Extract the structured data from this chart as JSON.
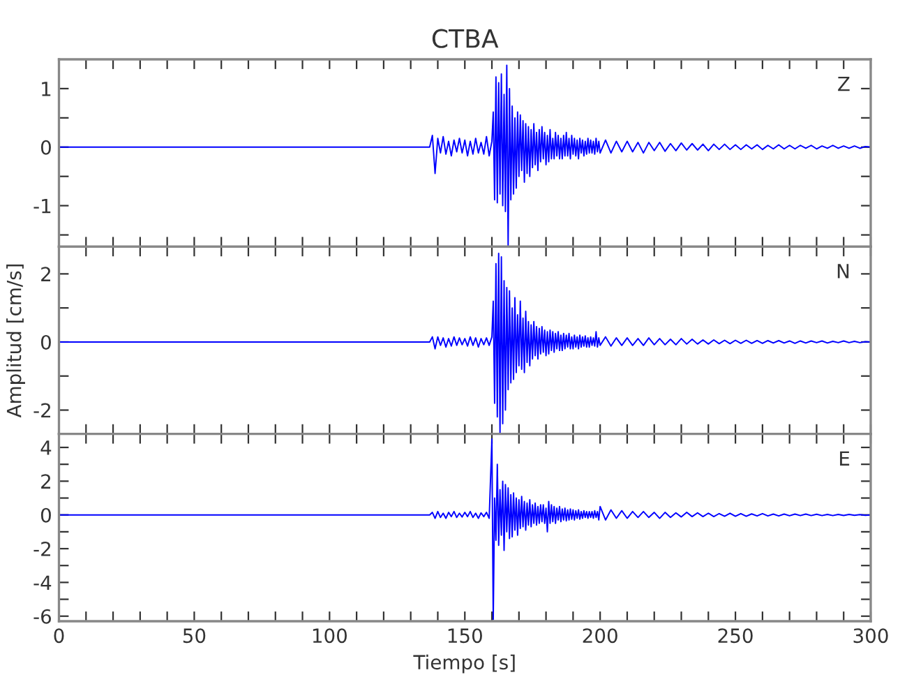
{
  "chart_data": [
    {
      "type": "line",
      "title": "CTBA",
      "annotations": [
        "Z"
      ],
      "tick_labels": "y",
      "grid": false,
      "legend": false,
      "marker": "none",
      "line_style": "solid",
      "xlim": [
        0,
        300
      ],
      "xticks": [
        {
          "value": 0,
          "label": null
        },
        {
          "value": 10,
          "label": null
        },
        {
          "value": 20,
          "label": null
        },
        {
          "value": 30,
          "label": null
        },
        {
          "value": 40,
          "label": null
        },
        {
          "value": 50,
          "label": null
        },
        {
          "value": 60,
          "label": null
        },
        {
          "value": 70,
          "label": null
        },
        {
          "value": 80,
          "label": null
        },
        {
          "value": 90,
          "label": null
        },
        {
          "value": 100,
          "label": null
        },
        {
          "value": 110,
          "label": null
        },
        {
          "value": 120,
          "label": null
        },
        {
          "value": 130,
          "label": null
        },
        {
          "value": 140,
          "label": null
        },
        {
          "value": 150,
          "label": null
        },
        {
          "value": 160,
          "label": null
        },
        {
          "value": 170,
          "label": null
        },
        {
          "value": 180,
          "label": null
        },
        {
          "value": 190,
          "label": null
        },
        {
          "value": 200,
          "label": null
        },
        {
          "value": 210,
          "label": null
        },
        {
          "value": 220,
          "label": null
        },
        {
          "value": 230,
          "label": null
        },
        {
          "value": 240,
          "label": null
        },
        {
          "value": 250,
          "label": null
        },
        {
          "value": 260,
          "label": null
        },
        {
          "value": 270,
          "label": null
        },
        {
          "value": 280,
          "label": null
        },
        {
          "value": 290,
          "label": null
        },
        {
          "value": 300,
          "label": null
        }
      ],
      "ylim": [
        -1.7,
        1.5
      ],
      "yticks": [
        {
          "value": -1.5,
          "label": null
        },
        -1,
        {
          "value": -0.5,
          "label": null
        },
        0,
        {
          "value": 0.5,
          "label": null
        },
        1
      ],
      "x": [
        0,
        137,
        138,
        139,
        140,
        141,
        142,
        143,
        144,
        145,
        146,
        147,
        148,
        149,
        150,
        151,
        152,
        153,
        154,
        155,
        156,
        157,
        158,
        159,
        160,
        160.5,
        161,
        161.5,
        162,
        162.5,
        163,
        163.5,
        164,
        164.5,
        165,
        165.5,
        166,
        166.5,
        167,
        167.5,
        168,
        168.5,
        169,
        169.5,
        170,
        170.5,
        171,
        171.5,
        172,
        172.5,
        173,
        173.5,
        174,
        174.5,
        175,
        175.5,
        176,
        176.5,
        177,
        177.5,
        178,
        178.5,
        179,
        179.5,
        180,
        180.5,
        181,
        181.5,
        182,
        182.5,
        183,
        183.5,
        184,
        184.5,
        185,
        185.5,
        186,
        186.5,
        187,
        187.5,
        188,
        188.5,
        189,
        189.5,
        190,
        190.5,
        191,
        191.5,
        192,
        192.5,
        193,
        193.5,
        194,
        194.5,
        195,
        195.5,
        196,
        196.5,
        197,
        197.5,
        198,
        198.5,
        199,
        199.5,
        200,
        202,
        204,
        206,
        208,
        210,
        212,
        214,
        216,
        218,
        220,
        222,
        224,
        226,
        228,
        230,
        232,
        234,
        236,
        238,
        240,
        242,
        244,
        246,
        248,
        250,
        252,
        254,
        256,
        258,
        260,
        262,
        264,
        266,
        268,
        270,
        272,
        274,
        276,
        278,
        280,
        282,
        284,
        286,
        288,
        290,
        292,
        294,
        296,
        298,
        300
      ],
      "series": [
        {
          "color": "#0000ff",
          "values": [
            0,
            0,
            0.2,
            -0.45,
            0.15,
            -0.1,
            0.18,
            -0.12,
            0.1,
            -0.15,
            0.12,
            -0.08,
            0.15,
            -0.1,
            0.12,
            -0.15,
            0.1,
            -0.12,
            0.15,
            -0.1,
            0.08,
            -0.12,
            0.18,
            -0.15,
            0.1,
            0.6,
            -0.9,
            1.2,
            -0.95,
            1.1,
            -0.8,
            1.25,
            -1.0,
            0.9,
            -1.1,
            1.4,
            -1.7,
            1.0,
            -0.9,
            0.7,
            -0.8,
            0.5,
            -0.7,
            0.6,
            -0.5,
            0.55,
            -0.4,
            0.45,
            -0.6,
            0.4,
            -0.45,
            0.35,
            -0.5,
            0.3,
            -0.35,
            0.4,
            -0.3,
            0.25,
            -0.4,
            0.3,
            -0.25,
            0.35,
            -0.2,
            0.25,
            -0.3,
            0.2,
            -0.25,
            0.3,
            -0.2,
            0.15,
            -0.2,
            0.25,
            -0.15,
            0.2,
            -0.2,
            0.15,
            -0.2,
            0.2,
            -0.15,
            0.25,
            -0.15,
            0.15,
            -0.2,
            0.2,
            -0.12,
            0.15,
            -0.15,
            0.12,
            -0.2,
            0.15,
            -0.1,
            0.12,
            -0.15,
            0.1,
            -0.12,
            0.15,
            -0.1,
            0.12,
            -0.1,
            0.1,
            -0.12,
            0.15,
            -0.08,
            0.1,
            -0.1,
            0.12,
            -0.1,
            0.1,
            -0.08,
            0.1,
            -0.08,
            0.08,
            -0.1,
            0.08,
            -0.06,
            0.08,
            -0.07,
            0.06,
            -0.06,
            0.07,
            -0.05,
            0.06,
            -0.05,
            0.05,
            -0.06,
            0.05,
            -0.04,
            0.05,
            -0.04,
            0.04,
            -0.04,
            0.04,
            -0.03,
            0.04,
            -0.04,
            0.03,
            -0.03,
            0.04,
            -0.03,
            0.03,
            -0.03,
            0.03,
            -0.02,
            0.03,
            -0.03,
            0.02,
            -0.02,
            0.03,
            -0.02,
            0.02,
            -0.02,
            0.02,
            -0.02,
            0.01,
            0
          ]
        }
      ]
    },
    {
      "type": "line",
      "ylabel": "Amplitud [cm/s]",
      "annotations": [
        "N"
      ],
      "tick_labels": "y",
      "grid": false,
      "legend": false,
      "marker": "none",
      "line_style": "solid",
      "xlim": [
        0,
        300
      ],
      "xticks": [
        {
          "value": 0,
          "label": null
        },
        {
          "value": 10,
          "label": null
        },
        {
          "value": 20,
          "label": null
        },
        {
          "value": 30,
          "label": null
        },
        {
          "value": 40,
          "label": null
        },
        {
          "value": 50,
          "label": null
        },
        {
          "value": 60,
          "label": null
        },
        {
          "value": 70,
          "label": null
        },
        {
          "value": 80,
          "label": null
        },
        {
          "value": 90,
          "label": null
        },
        {
          "value": 100,
          "label": null
        },
        {
          "value": 110,
          "label": null
        },
        {
          "value": 120,
          "label": null
        },
        {
          "value": 130,
          "label": null
        },
        {
          "value": 140,
          "label": null
        },
        {
          "value": 150,
          "label": null
        },
        {
          "value": 160,
          "label": null
        },
        {
          "value": 170,
          "label": null
        },
        {
          "value": 180,
          "label": null
        },
        {
          "value": 190,
          "label": null
        },
        {
          "value": 200,
          "label": null
        },
        {
          "value": 210,
          "label": null
        },
        {
          "value": 220,
          "label": null
        },
        {
          "value": 230,
          "label": null
        },
        {
          "value": 240,
          "label": null
        },
        {
          "value": 250,
          "label": null
        },
        {
          "value": 260,
          "label": null
        },
        {
          "value": 270,
          "label": null
        },
        {
          "value": 280,
          "label": null
        },
        {
          "value": 290,
          "label": null
        },
        {
          "value": 300,
          "label": null
        }
      ],
      "ylim": [
        -2.7,
        2.8
      ],
      "yticks": [
        -2,
        {
          "value": -1,
          "label": null
        },
        0,
        {
          "value": 1,
          "label": null
        },
        2
      ],
      "x": [
        0,
        137,
        138,
        139,
        140,
        141,
        142,
        143,
        144,
        145,
        146,
        147,
        148,
        149,
        150,
        151,
        152,
        153,
        154,
        155,
        156,
        157,
        158,
        159,
        160,
        160.5,
        161,
        161.5,
        162,
        162.5,
        163,
        163.5,
        164,
        164.5,
        165,
        165.5,
        166,
        166.5,
        167,
        167.5,
        168,
        168.5,
        169,
        169.5,
        170,
        170.5,
        171,
        171.5,
        172,
        172.5,
        173,
        173.5,
        174,
        174.5,
        175,
        175.5,
        176,
        176.5,
        177,
        177.5,
        178,
        178.5,
        179,
        179.5,
        180,
        180.5,
        181,
        181.5,
        182,
        182.5,
        183,
        183.5,
        184,
        184.5,
        185,
        185.5,
        186,
        186.5,
        187,
        187.5,
        188,
        188.5,
        189,
        189.5,
        190,
        190.5,
        191,
        191.5,
        192,
        192.5,
        193,
        193.5,
        194,
        194.5,
        195,
        195.5,
        196,
        196.5,
        197,
        197.5,
        198,
        198.5,
        199,
        199.5,
        200,
        202,
        204,
        206,
        208,
        210,
        212,
        214,
        216,
        218,
        220,
        222,
        224,
        226,
        228,
        230,
        232,
        234,
        236,
        238,
        240,
        242,
        244,
        246,
        248,
        250,
        252,
        254,
        256,
        258,
        260,
        262,
        264,
        266,
        268,
        270,
        272,
        274,
        276,
        278,
        280,
        282,
        284,
        286,
        288,
        290,
        292,
        294,
        296,
        298,
        300
      ],
      "series": [
        {
          "color": "#0000ff",
          "values": [
            0,
            0,
            0.15,
            -0.2,
            0.15,
            -0.1,
            0.12,
            -0.15,
            0.1,
            -0.12,
            0.15,
            -0.1,
            0.12,
            -0.08,
            0.1,
            -0.12,
            0.15,
            -0.1,
            0.12,
            -0.15,
            0.1,
            -0.08,
            0.12,
            -0.1,
            0.15,
            1.2,
            -1.8,
            2.3,
            -2.2,
            2.6,
            -2.7,
            2.5,
            -2.4,
            1.8,
            -2.0,
            1.6,
            -1.4,
            1.5,
            -1.2,
            1.0,
            -1.1,
            1.3,
            -0.9,
            0.8,
            -0.7,
            1.2,
            -0.8,
            0.7,
            -0.9,
            0.9,
            -0.6,
            0.6,
            -0.7,
            0.5,
            -0.5,
            0.6,
            -0.4,
            0.45,
            -0.5,
            0.4,
            -0.35,
            0.45,
            -0.3,
            0.35,
            -0.4,
            0.3,
            -0.35,
            0.35,
            -0.25,
            0.3,
            -0.3,
            0.25,
            -0.2,
            0.3,
            -0.25,
            0.2,
            -0.25,
            0.25,
            -0.2,
            0.2,
            -0.15,
            0.25,
            -0.2,
            0.15,
            -0.2,
            0.2,
            -0.15,
            0.15,
            -0.2,
            0.2,
            -0.15,
            0.15,
            -0.12,
            0.18,
            -0.15,
            0.12,
            -0.15,
            0.15,
            -0.1,
            0.12,
            -0.12,
            0.3,
            -0.15,
            0.12,
            -0.1,
            0.15,
            -0.12,
            0.12,
            -0.1,
            0.12,
            -0.1,
            0.1,
            -0.1,
            0.12,
            -0.08,
            0.1,
            -0.08,
            0.08,
            -0.08,
            0.1,
            -0.06,
            0.08,
            -0.06,
            0.06,
            -0.06,
            0.06,
            -0.05,
            0.05,
            -0.05,
            0.05,
            -0.04,
            0.05,
            -0.04,
            0.04,
            -0.04,
            0.04,
            -0.03,
            0.04,
            -0.03,
            0.03,
            -0.04,
            0.03,
            -0.03,
            0.03,
            -0.02,
            0.03,
            -0.03,
            0.02,
            -0.02,
            0.03,
            -0.02,
            0.02,
            -0.02,
            0.01,
            0
          ]
        }
      ]
    },
    {
      "type": "line",
      "xlabel": "Tiempo [s]",
      "annotations": [
        "E"
      ],
      "grid": false,
      "legend": false,
      "marker": "none",
      "line_style": "solid",
      "xlim": [
        0,
        300
      ],
      "xticks": [
        0,
        {
          "value": 10,
          "label": null
        },
        {
          "value": 20,
          "label": null
        },
        {
          "value": 30,
          "label": null
        },
        {
          "value": 40,
          "label": null
        },
        50,
        {
          "value": 60,
          "label": null
        },
        {
          "value": 70,
          "label": null
        },
        {
          "value": 80,
          "label": null
        },
        {
          "value": 90,
          "label": null
        },
        100,
        {
          "value": 110,
          "label": null
        },
        {
          "value": 120,
          "label": null
        },
        {
          "value": 130,
          "label": null
        },
        {
          "value": 140,
          "label": null
        },
        150,
        {
          "value": 160,
          "label": null
        },
        {
          "value": 170,
          "label": null
        },
        {
          "value": 180,
          "label": null
        },
        {
          "value": 190,
          "label": null
        },
        200,
        {
          "value": 210,
          "label": null
        },
        {
          "value": 220,
          "label": null
        },
        {
          "value": 230,
          "label": null
        },
        {
          "value": 240,
          "label": null
        },
        250,
        {
          "value": 260,
          "label": null
        },
        {
          "value": 270,
          "label": null
        },
        {
          "value": 280,
          "label": null
        },
        {
          "value": 290,
          "label": null
        },
        300
      ],
      "ylim": [
        -6.3,
        4.8
      ],
      "yticks": [
        -6,
        {
          "value": -5,
          "label": null
        },
        -4,
        {
          "value": -3,
          "label": null
        },
        -2,
        {
          "value": -1,
          "label": null
        },
        0,
        {
          "value": 1,
          "label": null
        },
        2,
        {
          "value": 3,
          "label": null
        },
        4
      ],
      "x": [
        0,
        137,
        138,
        139,
        140,
        141,
        142,
        143,
        144,
        145,
        146,
        147,
        148,
        149,
        150,
        151,
        152,
        153,
        154,
        155,
        156,
        157,
        158,
        159,
        160,
        160.5,
        161,
        161.5,
        162,
        162.5,
        163,
        163.5,
        164,
        164.5,
        165,
        165.5,
        166,
        166.5,
        167,
        167.5,
        168,
        168.5,
        169,
        169.5,
        170,
        170.5,
        171,
        171.5,
        172,
        172.5,
        173,
        173.5,
        174,
        174.5,
        175,
        175.5,
        176,
        176.5,
        177,
        177.5,
        178,
        178.5,
        179,
        179.5,
        180,
        180.5,
        181,
        181.5,
        182,
        182.5,
        183,
        183.5,
        184,
        184.5,
        185,
        185.5,
        186,
        186.5,
        187,
        187.5,
        188,
        188.5,
        189,
        189.5,
        190,
        190.5,
        191,
        191.5,
        192,
        192.5,
        193,
        193.5,
        194,
        194.5,
        195,
        195.5,
        196,
        196.5,
        197,
        197.5,
        198,
        198.5,
        199,
        199.5,
        200,
        202,
        204,
        206,
        208,
        210,
        212,
        214,
        216,
        218,
        220,
        222,
        224,
        226,
        228,
        230,
        232,
        234,
        236,
        238,
        240,
        242,
        244,
        246,
        248,
        250,
        252,
        254,
        256,
        258,
        260,
        262,
        264,
        266,
        268,
        270,
        272,
        274,
        276,
        278,
        280,
        282,
        284,
        286,
        288,
        290,
        292,
        294,
        296,
        298,
        300
      ],
      "series": [
        {
          "color": "#0000ff",
          "values": [
            0,
            0,
            0.15,
            -0.2,
            0.2,
            -0.15,
            0.1,
            -0.2,
            0.15,
            -0.1,
            0.2,
            -0.15,
            0.1,
            -0.12,
            0.15,
            -0.1,
            0.2,
            -0.15,
            0.1,
            -0.2,
            0.12,
            -0.1,
            0.15,
            -0.2,
            4.5,
            -6.2,
            1.0,
            -1.5,
            3.0,
            -1.8,
            1.5,
            -1.2,
            2.0,
            -2.1,
            1.8,
            -1.0,
            1.6,
            -1.4,
            1.2,
            -1.3,
            1.3,
            -0.9,
            1.0,
            -1.2,
            0.9,
            -0.8,
            1.1,
            -0.7,
            0.8,
            -0.9,
            0.7,
            -0.6,
            0.9,
            -0.7,
            0.6,
            -0.5,
            0.7,
            -0.6,
            0.5,
            -0.5,
            0.6,
            -0.4,
            0.6,
            -0.5,
            0.4,
            -1.0,
            0.8,
            -0.5,
            0.6,
            -0.4,
            0.5,
            -0.5,
            0.4,
            -0.3,
            0.5,
            -0.4,
            0.35,
            -0.3,
            0.4,
            -0.35,
            0.3,
            -0.3,
            0.35,
            -0.25,
            0.3,
            -0.3,
            0.25,
            -0.2,
            0.3,
            -0.25,
            0.2,
            -0.2,
            0.25,
            -0.15,
            0.2,
            -0.2,
            0.2,
            -0.15,
            0.2,
            -0.2,
            0.25,
            -0.15,
            0.2,
            -0.3,
            0.5,
            -0.3,
            0.3,
            -0.2,
            0.25,
            -0.2,
            0.2,
            -0.15,
            0.2,
            -0.15,
            0.15,
            -0.2,
            0.15,
            -0.15,
            0.12,
            -0.12,
            0.15,
            -0.1,
            0.12,
            -0.1,
            0.1,
            -0.1,
            0.08,
            -0.08,
            0.1,
            -0.08,
            0.08,
            -0.08,
            0.06,
            -0.06,
            0.08,
            -0.06,
            0.05,
            -0.06,
            0.05,
            -0.05,
            0.05,
            -0.04,
            0.05,
            -0.04,
            0.04,
            -0.04,
            0.03,
            -0.04,
            0.03,
            -0.03,
            0.03,
            -0.02,
            0.02,
            -0.02,
            0
          ]
        }
      ]
    }
  ]
}
